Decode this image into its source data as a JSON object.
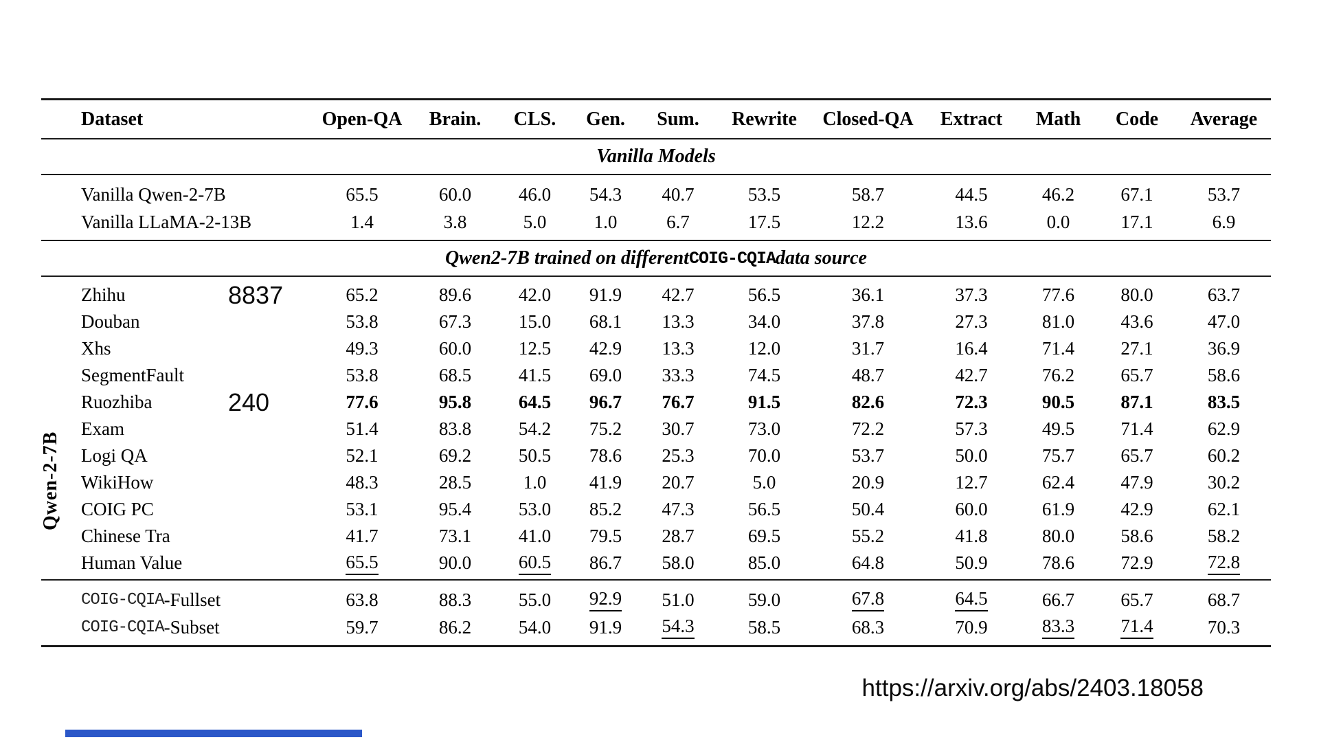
{
  "page": {
    "url_caption": "https://arxiv.org/abs/2403.18058"
  },
  "colors": {
    "accent_bar": "#2b57c8",
    "rule": "#1a1a1a"
  },
  "table": {
    "side_label": "Qwen-2-7B",
    "columns": [
      "Dataset",
      "Open-QA",
      "Brain.",
      "CLS.",
      "Gen.",
      "Sum.",
      "Rewrite",
      "Closed-QA",
      "Extract",
      "Math",
      "Code",
      "Average"
    ],
    "sections": [
      {
        "heading_parts": [
          {
            "t": "Vanilla Models",
            "mono": false
          }
        ],
        "rows": [
          {
            "label_parts": [
              {
                "t": "Vanilla Qwen-2-7B",
                "mono": false
              }
            ],
            "values": [
              "65.5",
              "60.0",
              "46.0",
              "54.3",
              "40.7",
              "53.5",
              "58.7",
              "44.5",
              "46.2",
              "67.1",
              "53.7"
            ],
            "bold_values": false,
            "underline": [],
            "annotation": ""
          },
          {
            "label_parts": [
              {
                "t": "Vanilla LLaMA-2-13B",
                "mono": false
              }
            ],
            "values": [
              "1.4",
              "3.8",
              "5.0",
              "1.0",
              "6.7",
              "17.5",
              "12.2",
              "13.6",
              "0.0",
              "17.1",
              "6.9"
            ],
            "bold_values": false,
            "underline": [],
            "annotation": ""
          }
        ]
      },
      {
        "heading_parts": [
          {
            "t": "Qwen2-7B trained on different ",
            "mono": false
          },
          {
            "t": "COIG-CQIA",
            "mono": true
          },
          {
            "t": " data source",
            "mono": false
          }
        ],
        "rows": [
          {
            "label_parts": [
              {
                "t": "Zhihu",
                "mono": false
              }
            ],
            "values": [
              "65.2",
              "89.6",
              "42.0",
              "91.9",
              "42.7",
              "56.5",
              "36.1",
              "37.3",
              "77.6",
              "80.0",
              "63.7"
            ],
            "bold_values": false,
            "underline": [],
            "annotation": "8837"
          },
          {
            "label_parts": [
              {
                "t": "Douban",
                "mono": false
              }
            ],
            "values": [
              "53.8",
              "67.3",
              "15.0",
              "68.1",
              "13.3",
              "34.0",
              "37.8",
              "27.3",
              "81.0",
              "43.6",
              "47.0"
            ],
            "bold_values": false,
            "underline": [],
            "annotation": ""
          },
          {
            "label_parts": [
              {
                "t": "Xhs",
                "mono": false
              }
            ],
            "values": [
              "49.3",
              "60.0",
              "12.5",
              "42.9",
              "13.3",
              "12.0",
              "31.7",
              "16.4",
              "71.4",
              "27.1",
              "36.9"
            ],
            "bold_values": false,
            "underline": [],
            "annotation": ""
          },
          {
            "label_parts": [
              {
                "t": "SegmentFault",
                "mono": false
              }
            ],
            "values": [
              "53.8",
              "68.5",
              "41.5",
              "69.0",
              "33.3",
              "74.5",
              "48.7",
              "42.7",
              "76.2",
              "65.7",
              "58.6"
            ],
            "bold_values": false,
            "underline": [],
            "annotation": ""
          },
          {
            "label_parts": [
              {
                "t": "Ruozhiba",
                "mono": false
              }
            ],
            "values": [
              "77.6",
              "95.8",
              "64.5",
              "96.7",
              "76.7",
              "91.5",
              "82.6",
              "72.3",
              "90.5",
              "87.1",
              "83.5"
            ],
            "bold_values": true,
            "underline": [],
            "annotation": "240"
          },
          {
            "label_parts": [
              {
                "t": "Exam",
                "mono": false
              }
            ],
            "values": [
              "51.4",
              "83.8",
              "54.2",
              "75.2",
              "30.7",
              "73.0",
              "72.2",
              "57.3",
              "49.5",
              "71.4",
              "62.9"
            ],
            "bold_values": false,
            "underline": [],
            "annotation": ""
          },
          {
            "label_parts": [
              {
                "t": "Logi QA",
                "mono": false
              }
            ],
            "values": [
              "52.1",
              "69.2",
              "50.5",
              "78.6",
              "25.3",
              "70.0",
              "53.7",
              "50.0",
              "75.7",
              "65.7",
              "60.2"
            ],
            "bold_values": false,
            "underline": [],
            "annotation": ""
          },
          {
            "label_parts": [
              {
                "t": "WikiHow",
                "mono": false
              }
            ],
            "values": [
              "48.3",
              "28.5",
              "1.0",
              "41.9",
              "20.7",
              "5.0",
              "20.9",
              "12.7",
              "62.4",
              "47.9",
              "30.2"
            ],
            "bold_values": false,
            "underline": [],
            "annotation": ""
          },
          {
            "label_parts": [
              {
                "t": "COIG PC",
                "mono": false
              }
            ],
            "values": [
              "53.1",
              "95.4",
              "53.0",
              "85.2",
              "47.3",
              "56.5",
              "50.4",
              "60.0",
              "61.9",
              "42.9",
              "62.1"
            ],
            "bold_values": false,
            "underline": [],
            "annotation": ""
          },
          {
            "label_parts": [
              {
                "t": "Chinese Tra",
                "mono": false
              }
            ],
            "values": [
              "41.7",
              "73.1",
              "41.0",
              "79.5",
              "28.7",
              "69.5",
              "55.2",
              "41.8",
              "80.0",
              "58.6",
              "58.2"
            ],
            "bold_values": false,
            "underline": [],
            "annotation": ""
          },
          {
            "label_parts": [
              {
                "t": "Human Value",
                "mono": false
              }
            ],
            "values": [
              "65.5",
              "90.0",
              "60.5",
              "86.7",
              "58.0",
              "85.0",
              "64.8",
              "50.9",
              "78.6",
              "72.9",
              "72.8"
            ],
            "bold_values": false,
            "underline": [
              0,
              2,
              10
            ],
            "annotation": ""
          }
        ]
      },
      {
        "heading_parts": [],
        "rows": [
          {
            "label_parts": [
              {
                "t": "COIG-CQIA",
                "mono": true
              },
              {
                "t": "-Fullset",
                "mono": false
              }
            ],
            "values": [
              "63.8",
              "88.3",
              "55.0",
              "92.9",
              "51.0",
              "59.0",
              "67.8",
              "64.5",
              "66.7",
              "65.7",
              "68.7"
            ],
            "bold_values": false,
            "underline": [
              3,
              6,
              7
            ],
            "annotation": ""
          },
          {
            "label_parts": [
              {
                "t": "COIG-CQIA",
                "mono": true
              },
              {
                "t": "-Subset",
                "mono": false
              }
            ],
            "values": [
              "59.7",
              "86.2",
              "54.0",
              "91.9",
              "54.3",
              "58.5",
              "68.3",
              "70.9",
              "83.3",
              "71.4",
              "70.3"
            ],
            "bold_values": false,
            "underline": [
              4,
              8,
              9
            ],
            "annotation": ""
          }
        ]
      }
    ]
  }
}
